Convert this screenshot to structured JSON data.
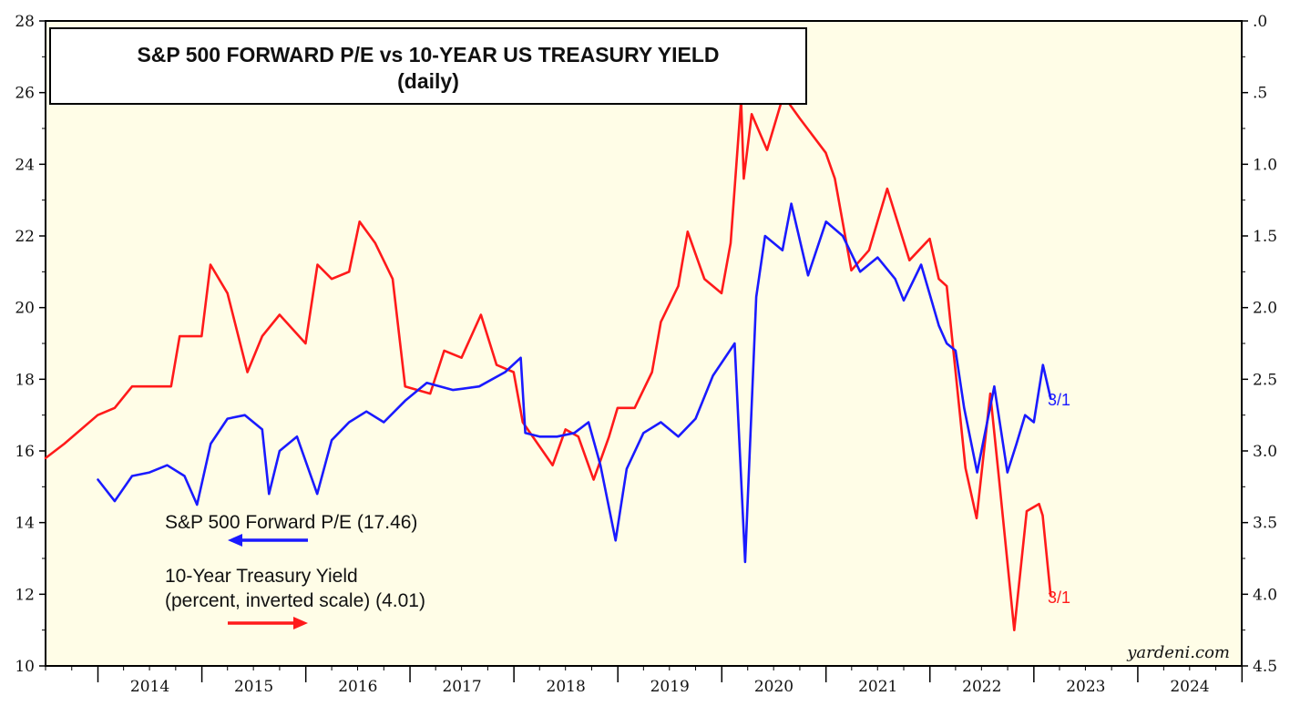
{
  "chart_data": {
    "type": "line",
    "title": "S&P 500 FORWARD P/E vs 10-YEAR US TREASURY YIELD",
    "subtitle": "(daily)",
    "x_range": [
      "2013-07-01",
      "2024-12-31"
    ],
    "x_tick_labels": [
      "2014",
      "2015",
      "2016",
      "2017",
      "2018",
      "2019",
      "2020",
      "2021",
      "2022",
      "2023",
      "2024"
    ],
    "left_axis": {
      "ylim": [
        10,
        28
      ],
      "ticks": [
        "10",
        "12",
        "14",
        "16",
        "18",
        "20",
        "22",
        "24",
        "26",
        "28"
      ]
    },
    "right_axis": {
      "ylim": [
        4.5,
        0.0
      ],
      "inverted": true,
      "ticks": [
        ".0",
        ".5",
        "1.0",
        "1.5",
        "2.0",
        "2.5",
        "3.0",
        "3.5",
        "4.0",
        "4.5"
      ]
    },
    "series": [
      {
        "name": "S&P 500 Forward P/E",
        "legend_label": "S&P 500 Forward P/E  (17.46)",
        "axis": "left",
        "color": "#1a1aff",
        "end_label": "3/1",
        "points": [
          [
            "2014-01-01",
            15.2
          ],
          [
            "2014-03-01",
            14.6
          ],
          [
            "2014-05-01",
            15.3
          ],
          [
            "2014-07-01",
            15.4
          ],
          [
            "2014-09-01",
            15.6
          ],
          [
            "2014-11-01",
            15.3
          ],
          [
            "2014-12-15",
            14.5
          ],
          [
            "2015-02-01",
            16.2
          ],
          [
            "2015-04-01",
            16.9
          ],
          [
            "2015-06-01",
            17.0
          ],
          [
            "2015-08-01",
            16.6
          ],
          [
            "2015-08-25",
            14.8
          ],
          [
            "2015-10-01",
            16.0
          ],
          [
            "2015-12-01",
            16.4
          ],
          [
            "2016-02-10",
            14.8
          ],
          [
            "2016-04-01",
            16.3
          ],
          [
            "2016-06-01",
            16.8
          ],
          [
            "2016-08-01",
            17.1
          ],
          [
            "2016-10-01",
            16.8
          ],
          [
            "2016-12-15",
            17.4
          ],
          [
            "2017-03-01",
            17.9
          ],
          [
            "2017-06-01",
            17.7
          ],
          [
            "2017-09-01",
            17.8
          ],
          [
            "2017-12-01",
            18.2
          ],
          [
            "2018-01-25",
            18.6
          ],
          [
            "2018-02-10",
            16.5
          ],
          [
            "2018-04-01",
            16.4
          ],
          [
            "2018-06-01",
            16.4
          ],
          [
            "2018-08-01",
            16.5
          ],
          [
            "2018-09-20",
            16.8
          ],
          [
            "2018-11-01",
            15.6
          ],
          [
            "2018-12-24",
            13.5
          ],
          [
            "2019-02-01",
            15.5
          ],
          [
            "2019-04-01",
            16.5
          ],
          [
            "2019-06-01",
            16.8
          ],
          [
            "2019-08-01",
            16.4
          ],
          [
            "2019-10-01",
            16.9
          ],
          [
            "2019-12-01",
            18.1
          ],
          [
            "2020-02-15",
            19.0
          ],
          [
            "2020-03-23",
            12.9
          ],
          [
            "2020-05-01",
            20.3
          ],
          [
            "2020-06-01",
            22.0
          ],
          [
            "2020-08-01",
            21.6
          ],
          [
            "2020-09-01",
            22.9
          ],
          [
            "2020-10-30",
            20.9
          ],
          [
            "2021-01-01",
            22.4
          ],
          [
            "2021-03-01",
            22.0
          ],
          [
            "2021-05-01",
            21.0
          ],
          [
            "2021-07-01",
            21.4
          ],
          [
            "2021-09-01",
            20.8
          ],
          [
            "2021-10-01",
            20.2
          ],
          [
            "2021-12-01",
            21.2
          ],
          [
            "2022-02-01",
            19.5
          ],
          [
            "2022-03-01",
            19.0
          ],
          [
            "2022-04-01",
            18.8
          ],
          [
            "2022-05-01",
            17.2
          ],
          [
            "2022-06-16",
            15.4
          ],
          [
            "2022-08-15",
            17.8
          ],
          [
            "2022-09-30",
            15.4
          ],
          [
            "2022-11-01",
            16.2
          ],
          [
            "2022-12-01",
            17.0
          ],
          [
            "2023-01-01",
            16.8
          ],
          [
            "2023-02-02",
            18.4
          ],
          [
            "2023-03-01",
            17.46
          ]
        ]
      },
      {
        "name": "10-Year Treasury Yield",
        "legend_label_line1": "10-Year Treasury Yield",
        "legend_label_line2": "(percent, inverted scale) (4.01)",
        "axis": "right",
        "color": "#ff1a1a",
        "end_label": "3/1",
        "points": [
          [
            "2013-07-01",
            3.05
          ],
          [
            "2013-09-05",
            2.95
          ],
          [
            "2013-12-31",
            2.75
          ],
          [
            "2014-03-01",
            2.7
          ],
          [
            "2014-05-01",
            2.55
          ],
          [
            "2014-07-01",
            2.55
          ],
          [
            "2014-09-15",
            2.55
          ],
          [
            "2014-10-15",
            2.2
          ],
          [
            "2014-12-31",
            2.2
          ],
          [
            "2015-01-31",
            1.7
          ],
          [
            "2015-04-01",
            1.9
          ],
          [
            "2015-06-10",
            2.45
          ],
          [
            "2015-08-01",
            2.2
          ],
          [
            "2015-10-01",
            2.05
          ],
          [
            "2015-12-31",
            2.25
          ],
          [
            "2016-02-11",
            1.7
          ],
          [
            "2016-04-01",
            1.8
          ],
          [
            "2016-06-01",
            1.75
          ],
          [
            "2016-07-08",
            1.4
          ],
          [
            "2016-09-01",
            1.55
          ],
          [
            "2016-11-01",
            1.8
          ],
          [
            "2016-12-15",
            2.55
          ],
          [
            "2017-03-13",
            2.6
          ],
          [
            "2017-05-01",
            2.3
          ],
          [
            "2017-07-01",
            2.35
          ],
          [
            "2017-09-07",
            2.05
          ],
          [
            "2017-11-01",
            2.4
          ],
          [
            "2017-12-31",
            2.45
          ],
          [
            "2018-02-01",
            2.8
          ],
          [
            "2018-05-17",
            3.1
          ],
          [
            "2018-07-01",
            2.85
          ],
          [
            "2018-08-15",
            2.9
          ],
          [
            "2018-10-08",
            3.2
          ],
          [
            "2018-12-01",
            2.9
          ],
          [
            "2018-12-31",
            2.7
          ],
          [
            "2019-03-01",
            2.7
          ],
          [
            "2019-05-01",
            2.45
          ],
          [
            "2019-06-01",
            2.1
          ],
          [
            "2019-08-01",
            1.85
          ],
          [
            "2019-09-03",
            1.47
          ],
          [
            "2019-11-01",
            1.8
          ],
          [
            "2019-12-31",
            1.9
          ],
          [
            "2020-02-01",
            1.55
          ],
          [
            "2020-03-09",
            0.55
          ],
          [
            "2020-03-18",
            1.1
          ],
          [
            "2020-04-15",
            0.65
          ],
          [
            "2020-06-08",
            0.9
          ],
          [
            "2020-08-04",
            0.52
          ],
          [
            "2020-10-01",
            0.68
          ],
          [
            "2020-12-31",
            0.92
          ],
          [
            "2021-02-01",
            1.1
          ],
          [
            "2021-03-31",
            1.74
          ],
          [
            "2021-06-01",
            1.6
          ],
          [
            "2021-08-04",
            1.17
          ],
          [
            "2021-10-21",
            1.67
          ],
          [
            "2021-12-31",
            1.52
          ],
          [
            "2022-02-01",
            1.8
          ],
          [
            "2022-03-01",
            1.85
          ],
          [
            "2022-05-06",
            3.12
          ],
          [
            "2022-06-14",
            3.47
          ],
          [
            "2022-08-01",
            2.6
          ],
          [
            "2022-09-01",
            3.2
          ],
          [
            "2022-10-24",
            4.25
          ],
          [
            "2022-12-07",
            3.42
          ],
          [
            "2023-01-19",
            3.37
          ],
          [
            "2023-02-01",
            3.45
          ],
          [
            "2023-03-01",
            4.01
          ]
        ]
      }
    ],
    "credit": "yardeni.com"
  }
}
